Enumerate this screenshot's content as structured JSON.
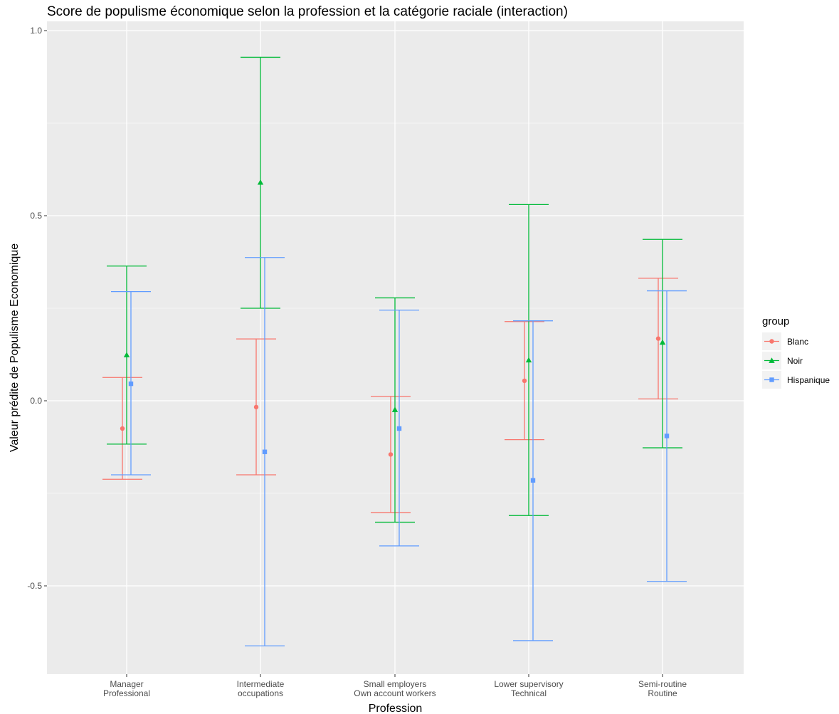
{
  "chart_data": {
    "type": "errorbar",
    "title": "Score de populisme économique selon la profession et la catégorie raciale (interaction)",
    "xlabel": "Profession",
    "ylabel": "Valeur prédite de Populisme Economique",
    "ylim": [
      -0.74,
      1.0
    ],
    "y_ticks": [
      -0.5,
      0.0,
      0.5,
      1.0
    ],
    "y_tick_labels": [
      "-0.5",
      "0.0",
      "0.5",
      "1.0"
    ],
    "grid": true,
    "legend_position": "right",
    "legend_title": "group",
    "categories": [
      [
        "Manager",
        "Professional"
      ],
      [
        "Intermediate",
        "occupations"
      ],
      [
        "Small employers",
        "Own account workers"
      ],
      [
        "Lower supervisory",
        "Technical"
      ],
      [
        "Semi-routine",
        "Routine"
      ]
    ],
    "series": [
      {
        "name": "Blanc",
        "color": "#F8766D",
        "marker": "circle",
        "values": [
          -0.075,
          -0.017,
          -0.145,
          0.054,
          0.168
        ],
        "lower": [
          -0.212,
          -0.2,
          -0.302,
          -0.105,
          0.005
        ],
        "upper": [
          0.063,
          0.167,
          0.012,
          0.214,
          0.331
        ]
      },
      {
        "name": "Noir",
        "color": "#00BA38",
        "marker": "triangle",
        "values": [
          0.124,
          0.59,
          -0.024,
          0.11,
          0.158
        ],
        "lower": [
          -0.117,
          0.25,
          -0.328,
          -0.31,
          -0.127
        ],
        "upper": [
          0.364,
          0.928,
          0.278,
          0.53,
          0.436
        ]
      },
      {
        "name": "Hispanique",
        "color": "#619CFF",
        "marker": "square",
        "values": [
          0.046,
          -0.138,
          -0.075,
          -0.215,
          -0.095
        ],
        "lower": [
          -0.2,
          -0.662,
          -0.392,
          -0.648,
          -0.488
        ],
        "upper": [
          0.295,
          0.387,
          0.245,
          0.216,
          0.297
        ]
      }
    ]
  }
}
